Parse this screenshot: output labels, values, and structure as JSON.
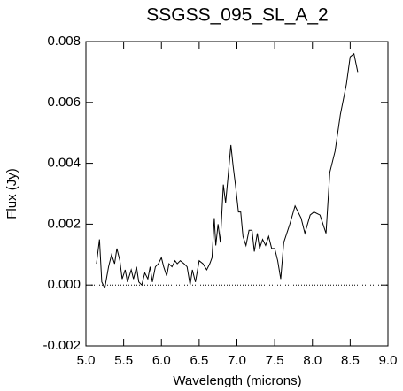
{
  "chart_data": {
    "type": "line",
    "title": "SSGSS_095_SL_A_2",
    "x_label": "Wavelength (microns)",
    "y_label": "Flux (Jy)",
    "xlim": [
      5.0,
      9.0
    ],
    "xticks": [
      {
        "value": 5.0,
        "label": "5.0"
      },
      5.5,
      {
        "value": 6.0,
        "label": "6.0"
      },
      6.5,
      {
        "value": 7.0,
        "label": "7.0"
      },
      7.5,
      {
        "value": 8.0,
        "label": "8.0"
      },
      8.5,
      {
        "value": 9.0,
        "label": "9.0"
      }
    ],
    "ylim": [
      -0.002,
      0.008
    ],
    "yticks": [
      -0.002,
      {
        "value": 0,
        "label": "0.000"
      },
      0.002,
      0.004,
      0.006,
      0.008
    ],
    "zero_line": true,
    "series": [
      {
        "color": "#000000",
        "x": [
          5.14,
          5.18,
          5.21,
          5.25,
          5.3,
          5.34,
          5.38,
          5.41,
          5.45,
          5.48,
          5.52,
          5.55,
          5.6,
          5.63,
          5.67,
          5.7,
          5.74,
          5.78,
          5.82,
          5.85,
          5.88,
          5.92,
          5.96,
          6.0,
          6.03,
          6.07,
          6.1,
          6.14,
          6.18,
          6.21,
          6.25,
          6.3,
          6.34,
          6.38,
          6.41,
          6.45,
          6.5,
          6.55,
          6.6,
          6.64,
          6.67,
          6.7,
          6.72,
          6.75,
          6.78,
          6.82,
          6.85,
          6.88,
          6.92,
          6.95,
          6.98,
          7.02,
          7.05,
          7.08,
          7.12,
          7.16,
          7.2,
          7.23,
          7.27,
          7.3,
          7.34,
          7.38,
          7.42,
          7.46,
          7.5,
          7.54,
          7.58,
          7.62,
          7.7,
          7.77,
          7.85,
          7.9,
          7.97,
          8.02,
          8.1,
          8.18,
          8.23,
          8.3,
          8.37,
          8.45,
          8.5,
          8.55,
          8.6
        ],
        "values": [
          0.0007,
          0.0015,
          0.0001,
          -0.0001,
          0.0006,
          0.001,
          0.0007,
          0.0012,
          0.0008,
          0.0002,
          0.0005,
          0.0001,
          0.0005,
          0.0002,
          0.0006,
          0.0001,
          0.0,
          0.0004,
          0.0002,
          0.0006,
          0.0001,
          0.0006,
          0.0007,
          0.0009,
          0.0006,
          0.0003,
          0.0007,
          0.0006,
          0.0008,
          0.0007,
          0.0008,
          0.0007,
          0.0006,
          0.0,
          0.0005,
          0.0001,
          0.0008,
          0.0007,
          0.0005,
          0.0007,
          0.0009,
          0.0022,
          0.0013,
          0.002,
          0.0014,
          0.0033,
          0.0027,
          0.0035,
          0.0046,
          0.0039,
          0.0033,
          0.0024,
          0.0024,
          0.0016,
          0.0013,
          0.0018,
          0.0018,
          0.0011,
          0.0017,
          0.0012,
          0.0015,
          0.0013,
          0.0016,
          0.0012,
          0.0012,
          0.0008,
          0.0002,
          0.0014,
          0.002,
          0.0026,
          0.0022,
          0.0017,
          0.0023,
          0.0024,
          0.0023,
          0.0017,
          0.0037,
          0.0044,
          0.0056,
          0.0066,
          0.0075,
          0.0076,
          0.007
        ]
      }
    ]
  }
}
